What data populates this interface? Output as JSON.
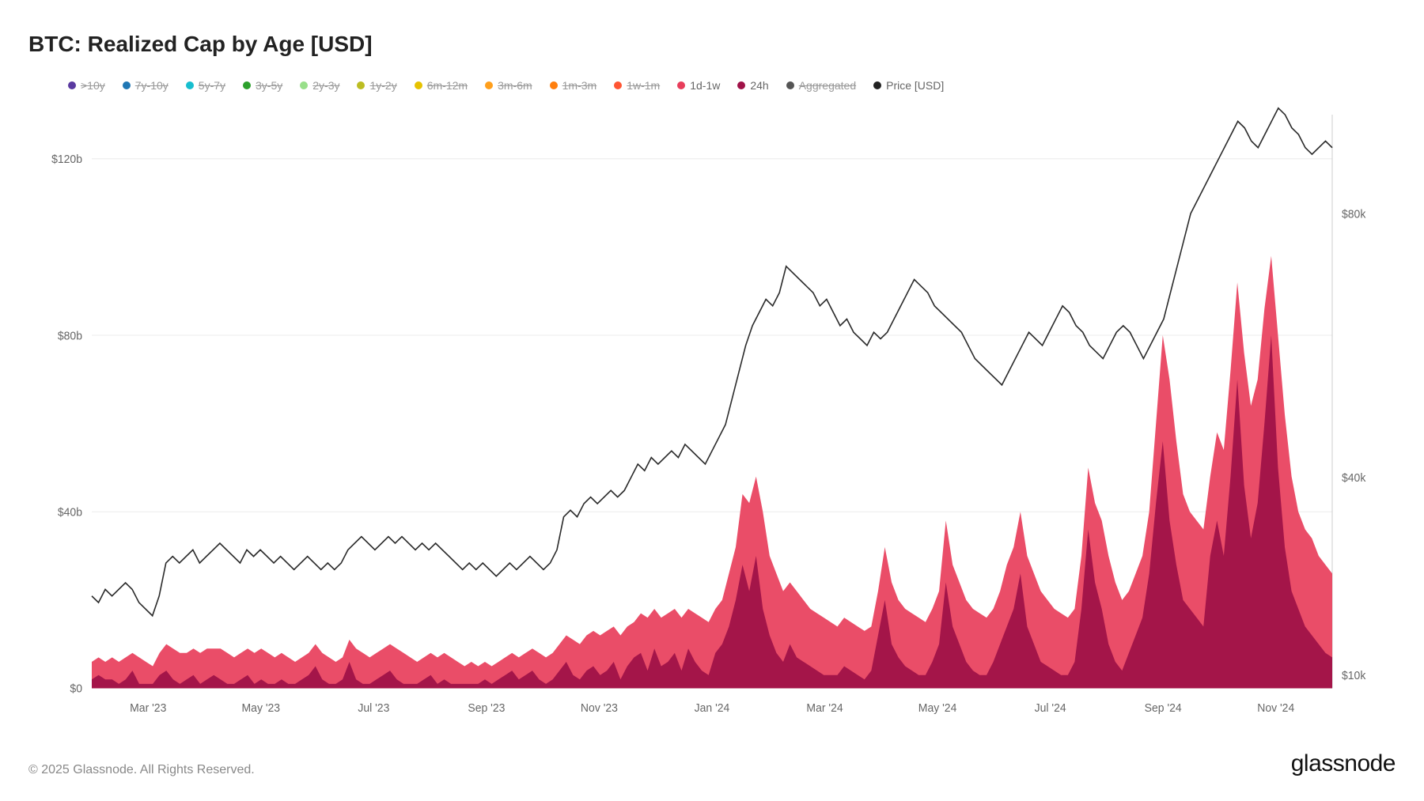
{
  "title": "BTC: Realized Cap by Age [USD]",
  "copyright": "© 2025 Glassnode. All Rights Reserved.",
  "brand": "glassnode",
  "chart": {
    "type": "combined-area-line",
    "background_color": "#ffffff",
    "grid_color": "#ececec",
    "title_fontsize": 28,
    "label_fontsize": 14,
    "yleft": {
      "min": 0,
      "max": 130,
      "ticks": [
        0,
        40,
        80,
        120
      ],
      "tick_labels": [
        "$0",
        "$40b",
        "$80b",
        "$120b"
      ]
    },
    "yright": {
      "min": 8,
      "max": 95,
      "ticks": [
        10,
        40,
        80
      ],
      "tick_labels": [
        "$10k",
        "$40k",
        "$80k"
      ]
    },
    "x_labels": [
      "Mar '23",
      "May '23",
      "Jul '23",
      "Sep '23",
      "Nov '23",
      "Jan '24",
      "Mar '24",
      "May '24",
      "Jul '24",
      "Sep '24",
      "Nov '24"
    ],
    "legend": [
      {
        "label": ">10y",
        "color": "#5a3aa0",
        "strike": true
      },
      {
        "label": "7y-10y",
        "color": "#1f77b4",
        "strike": true
      },
      {
        "label": "5y-7y",
        "color": "#17becf",
        "strike": true
      },
      {
        "label": "3y-5y",
        "color": "#2ca02c",
        "strike": true
      },
      {
        "label": "2y-3y",
        "color": "#98df8a",
        "strike": true
      },
      {
        "label": "1y-2y",
        "color": "#bcbd22",
        "strike": true
      },
      {
        "label": "6m-12m",
        "color": "#e6c200",
        "strike": true
      },
      {
        "label": "3m-6m",
        "color": "#ff9f1c",
        "strike": true
      },
      {
        "label": "1m-3m",
        "color": "#ff7f0e",
        "strike": true
      },
      {
        "label": "1w-1m",
        "color": "#ff5533",
        "strike": true
      },
      {
        "label": "1d-1w",
        "color": "#e83e5b",
        "strike": false
      },
      {
        "label": "24h",
        "color": "#a01248",
        "strike": false
      },
      {
        "label": "Aggregated",
        "color": "#555555",
        "strike": true
      },
      {
        "label": "Price [USD]",
        "color": "#222222",
        "strike": false
      }
    ],
    "series_price": {
      "color": "#2b2b2b",
      "width": 1.6,
      "values": [
        22,
        21,
        23,
        22,
        23,
        24,
        23,
        21,
        20,
        19,
        22,
        27,
        28,
        27,
        28,
        29,
        27,
        28,
        29,
        30,
        29,
        28,
        27,
        29,
        28,
        29,
        28,
        27,
        28,
        27,
        26,
        27,
        28,
        27,
        26,
        27,
        26,
        27,
        29,
        30,
        31,
        30,
        29,
        30,
        31,
        30,
        31,
        30,
        29,
        30,
        29,
        30,
        29,
        28,
        27,
        26,
        27,
        26,
        27,
        26,
        25,
        26,
        27,
        26,
        27,
        28,
        27,
        26,
        27,
        29,
        34,
        35,
        34,
        36,
        37,
        36,
        37,
        38,
        37,
        38,
        40,
        42,
        41,
        43,
        42,
        43,
        44,
        43,
        45,
        44,
        43,
        42,
        44,
        46,
        48,
        52,
        56,
        60,
        63,
        65,
        67,
        66,
        68,
        72,
        71,
        70,
        69,
        68,
        66,
        67,
        65,
        63,
        64,
        62,
        61,
        60,
        62,
        61,
        62,
        64,
        66,
        68,
        70,
        69,
        68,
        66,
        65,
        64,
        63,
        62,
        60,
        58,
        57,
        56,
        55,
        54,
        56,
        58,
        60,
        62,
        61,
        60,
        62,
        64,
        66,
        65,
        63,
        62,
        60,
        59,
        58,
        60,
        62,
        63,
        62,
        60,
        58,
        60,
        62,
        64,
        68,
        72,
        76,
        80,
        82,
        84,
        86,
        88,
        90,
        92,
        94,
        93,
        91,
        90,
        92,
        94,
        96,
        95,
        93,
        92,
        90,
        89,
        90,
        91,
        90
      ]
    },
    "series_1d1w": {
      "color": "#e83e5b",
      "opacity": 0.92,
      "values": [
        6,
        7,
        6,
        7,
        6,
        7,
        8,
        7,
        6,
        5,
        8,
        10,
        9,
        8,
        8,
        9,
        8,
        9,
        9,
        9,
        8,
        7,
        8,
        9,
        8,
        9,
        8,
        7,
        8,
        7,
        6,
        7,
        8,
        10,
        8,
        7,
        6,
        7,
        11,
        9,
        8,
        7,
        8,
        9,
        10,
        9,
        8,
        7,
        6,
        7,
        8,
        7,
        8,
        7,
        6,
        5,
        6,
        5,
        6,
        5,
        6,
        7,
        8,
        7,
        8,
        9,
        8,
        7,
        8,
        10,
        12,
        11,
        10,
        12,
        13,
        12,
        13,
        14,
        12,
        14,
        15,
        17,
        16,
        18,
        16,
        17,
        18,
        16,
        18,
        17,
        16,
        15,
        18,
        20,
        26,
        32,
        44,
        42,
        48,
        40,
        30,
        26,
        22,
        24,
        22,
        20,
        18,
        17,
        16,
        15,
        14,
        16,
        15,
        14,
        13,
        14,
        22,
        32,
        24,
        20,
        18,
        17,
        16,
        15,
        18,
        22,
        38,
        28,
        24,
        20,
        18,
        17,
        16,
        18,
        22,
        28,
        32,
        40,
        30,
        26,
        22,
        20,
        18,
        17,
        16,
        18,
        30,
        50,
        42,
        38,
        30,
        24,
        20,
        22,
        26,
        30,
        40,
        60,
        80,
        70,
        56,
        44,
        40,
        38,
        36,
        48,
        58,
        54,
        72,
        92,
        76,
        64,
        70,
        86,
        98,
        80,
        62,
        48,
        40,
        36,
        34,
        30,
        28,
        26
      ]
    },
    "series_24h": {
      "color": "#a01248",
      "opacity": 0.95,
      "values": [
        2,
        3,
        2,
        2,
        1,
        2,
        4,
        1,
        1,
        1,
        3,
        4,
        2,
        1,
        2,
        3,
        1,
        2,
        3,
        2,
        1,
        1,
        2,
        3,
        1,
        2,
        1,
        1,
        2,
        1,
        1,
        2,
        3,
        5,
        2,
        1,
        1,
        2,
        6,
        2,
        1,
        1,
        2,
        3,
        4,
        2,
        1,
        1,
        1,
        2,
        3,
        1,
        2,
        1,
        1,
        1,
        1,
        1,
        2,
        1,
        2,
        3,
        4,
        2,
        3,
        4,
        2,
        1,
        2,
        4,
        6,
        3,
        2,
        4,
        5,
        3,
        4,
        6,
        2,
        5,
        7,
        8,
        4,
        9,
        5,
        6,
        8,
        4,
        9,
        6,
        4,
        3,
        8,
        10,
        14,
        20,
        28,
        22,
        30,
        18,
        12,
        8,
        6,
        10,
        7,
        6,
        5,
        4,
        3,
        3,
        3,
        5,
        4,
        3,
        2,
        4,
        12,
        20,
        10,
        7,
        5,
        4,
        3,
        3,
        6,
        10,
        24,
        14,
        10,
        6,
        4,
        3,
        3,
        6,
        10,
        14,
        18,
        26,
        14,
        10,
        6,
        5,
        4,
        3,
        3,
        6,
        18,
        36,
        24,
        18,
        10,
        6,
        4,
        8,
        12,
        16,
        26,
        42,
        56,
        38,
        28,
        20,
        18,
        16,
        14,
        30,
        38,
        30,
        48,
        70,
        46,
        34,
        42,
        60,
        80,
        50,
        32,
        22,
        18,
        14,
        12,
        10,
        8,
        7
      ]
    }
  }
}
